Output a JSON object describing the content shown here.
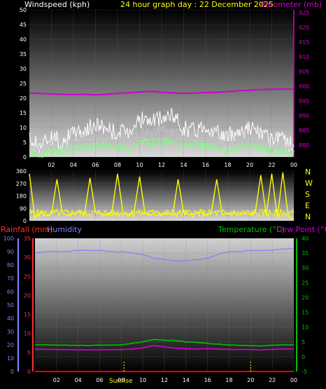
{
  "header": {
    "wind_title": "Windspeed (kph)",
    "graph_title": "24 hour graph day : 22 December 2025",
    "baro_title": "Barometer (mb)",
    "compass": [
      "N",
      "W",
      "S",
      "E",
      "N"
    ],
    "rain_title": "Rainfall (mm)",
    "humidity_title": "Humidity",
    "temp_title": "Temperature (°C)",
    "dew_title": "Dew Point (°C)",
    "sunrise_label": "Sunrise"
  },
  "colors": {
    "wind_gust": "#ffffff",
    "wind_avg": "#c0c0c0",
    "wind_green": "#7dff7d",
    "baro": "#d000d0",
    "direction": "#ffff00",
    "rain_axis": "#ff3030",
    "humidity": "#8080ff",
    "temperature": "#00c000",
    "dewpoint": "#d000d0",
    "rain": "#ff0000"
  },
  "chart_data": [
    {
      "type": "line",
      "name": "wind-baro",
      "x_ticks": [
        "02",
        "04",
        "06",
        "08",
        "10",
        "12",
        "14",
        "16",
        "18",
        "20",
        "22",
        "00"
      ],
      "y_left_ticks": [
        "0",
        "5",
        "10",
        "15",
        "20",
        "25",
        "30",
        "35",
        "40",
        "45",
        "50"
      ],
      "y_right_ticks": [
        "880",
        "885",
        "890",
        "895",
        "900",
        "905",
        "910",
        "915",
        "920",
        "925"
      ],
      "ylabel_left": "Windspeed (kph)",
      "ylabel_right": "Barometer (mb)",
      "ylim_left": [
        0,
        50
      ],
      "ylim_right": [
        876,
        926
      ],
      "hours": [
        0,
        1,
        2,
        3,
        4,
        5,
        6,
        7,
        8,
        9,
        10,
        11,
        12,
        13,
        14,
        15,
        16,
        17,
        18,
        19,
        20,
        21,
        22,
        23,
        24
      ],
      "series": [
        {
          "name": "Barometer (mb)",
          "values": [
            897.7,
            897.6,
            897.4,
            897.3,
            897.2,
            897.3,
            897.1,
            897.3,
            897.6,
            897.8,
            898.1,
            898.3,
            898.0,
            897.8,
            897.6,
            897.7,
            897.9,
            898.0,
            898.2,
            898.5,
            898.7,
            898.9,
            899.0,
            899.1,
            899.0
          ]
        },
        {
          "name": "gust",
          "values": [
            6,
            4,
            7,
            5,
            8,
            9,
            11,
            10,
            8,
            9,
            13,
            12,
            13,
            14,
            10,
            9,
            11,
            8,
            7,
            9,
            10,
            8,
            5,
            6,
            4
          ]
        },
        {
          "name": "average",
          "values": [
            3,
            2,
            4,
            3,
            5,
            6,
            7,
            6,
            5,
            6,
            8,
            8,
            9,
            8,
            7,
            6,
            7,
            5,
            4,
            6,
            6,
            5,
            3,
            4,
            2
          ]
        },
        {
          "name": "low",
          "values": [
            1,
            0,
            2,
            2,
            3,
            3,
            4,
            4,
            3,
            3,
            5,
            5,
            5,
            5,
            4,
            4,
            4,
            3,
            2,
            3,
            4,
            3,
            2,
            2,
            1
          ]
        }
      ]
    },
    {
      "type": "line",
      "name": "wind-direction",
      "x_ticks": [],
      "y_ticks": [
        "0",
        "90",
        "180",
        "270",
        "360"
      ],
      "ylim": [
        0,
        360
      ],
      "hours": [
        0,
        0.5,
        1,
        1.5,
        2,
        2.5,
        3,
        3.5,
        4,
        4.5,
        5,
        5.5,
        6,
        6.5,
        7,
        7.5,
        8,
        8.5,
        9,
        9.5,
        10,
        10.5,
        11,
        11.5,
        12,
        12.5,
        13,
        13.5,
        14,
        14.5,
        15,
        15.5,
        16,
        16.5,
        17,
        17.5,
        18,
        18.5,
        19,
        19.5,
        20,
        20.5,
        21,
        21.5,
        22,
        22.5,
        23,
        23.5,
        24
      ],
      "values": [
        340,
        20,
        60,
        35,
        45,
        300,
        50,
        40,
        55,
        70,
        45,
        310,
        60,
        50,
        40,
        65,
        340,
        55,
        45,
        60,
        320,
        50,
        40,
        70,
        45,
        55,
        40,
        300,
        60,
        45,
        50,
        65,
        40,
        55,
        300,
        45,
        50,
        60,
        40,
        55,
        45,
        60,
        330,
        40,
        340,
        20,
        350,
        30,
        10
      ]
    },
    {
      "type": "line",
      "name": "temp-hum-rain",
      "x_ticks": [
        "02",
        "04",
        "06",
        "08",
        "10",
        "12",
        "14",
        "16",
        "18",
        "20",
        "22",
        "00"
      ],
      "y_left_ticks": [
        "0",
        "10",
        "20",
        "30",
        "40",
        "50",
        "60",
        "70",
        "80",
        "90",
        "100"
      ],
      "y_left2_ticks": [
        "0",
        "5",
        "10",
        "15",
        "20",
        "25",
        "30",
        "35"
      ],
      "y_right_ticks": [
        "-5",
        "0",
        "5",
        "10",
        "15",
        "20",
        "25",
        "30",
        "35",
        "40"
      ],
      "ylim_humidity": [
        0,
        100
      ],
      "ylim_rain": [
        0,
        35
      ],
      "ylim_temp": [
        -5,
        40
      ],
      "hours": [
        0,
        1,
        2,
        3,
        4,
        5,
        6,
        7,
        8,
        9,
        10,
        11,
        12,
        13,
        14,
        15,
        16,
        17,
        18,
        19,
        20,
        21,
        22,
        23,
        24
      ],
      "series": [
        {
          "name": "Humidity",
          "values": [
            89,
            90,
            90,
            90,
            91,
            91,
            91,
            90,
            90,
            89,
            88,
            85,
            84,
            83,
            83,
            84,
            85,
            88,
            90,
            90,
            91,
            91,
            91,
            92,
            92
          ]
        },
        {
          "name": "Temperature (°C)",
          "values": [
            4.0,
            4.0,
            3.9,
            3.9,
            3.8,
            3.8,
            3.9,
            3.9,
            4.0,
            4.5,
            5.0,
            5.8,
            5.6,
            5.4,
            5.0,
            4.8,
            4.5,
            4.2,
            4.0,
            3.8,
            3.7,
            3.6,
            3.9,
            4.0,
            4.0
          ]
        },
        {
          "name": "Dew Point (°C)",
          "values": [
            2.5,
            2.5,
            2.4,
            2.4,
            2.3,
            2.3,
            2.3,
            2.4,
            2.4,
            2.6,
            3.0,
            3.8,
            3.3,
            2.9,
            2.7,
            2.6,
            2.7,
            2.6,
            2.5,
            2.4,
            2.4,
            2.3,
            2.5,
            2.6,
            2.6
          ]
        },
        {
          "name": "Rainfall (mm)",
          "values": [
            0,
            0,
            0,
            0,
            0,
            0,
            0,
            0,
            0,
            0,
            0,
            0,
            0,
            0,
            0,
            0,
            0,
            0,
            0,
            0,
            0,
            0,
            0,
            0,
            0
          ]
        }
      ],
      "markers_hours": [
        8.25,
        20
      ]
    }
  ]
}
